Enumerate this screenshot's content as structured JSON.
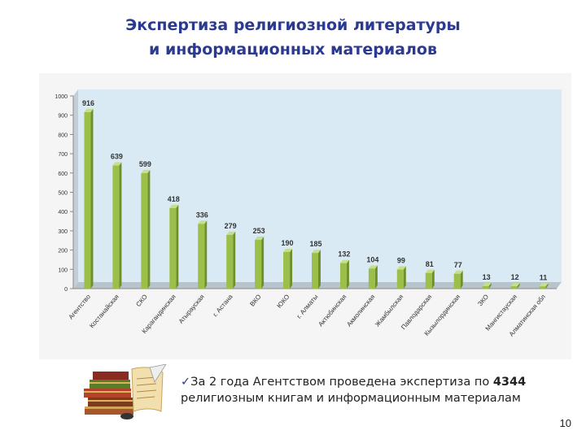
{
  "title": {
    "line1": "Экспертиза религиозной литературы",
    "line2": "и информационных материалов"
  },
  "note": {
    "check": "✓",
    "before": "За 2 года Агентством проведена экспертиза по ",
    "total": "4344",
    "after": " религиозным книгам и информационным материалам"
  },
  "page_number": "10",
  "colors": {
    "title": "#2b3a8f",
    "bar": "#9cbf4a",
    "bar_side": "#6f8f2c",
    "bar_top": "#c6df8a",
    "plot_back": "#d9eaf4"
  },
  "chart_data": {
    "type": "bar",
    "title": "",
    "xlabel": "",
    "ylabel": "",
    "ylim": [
      0,
      1000
    ],
    "yticks": [
      0,
      100,
      200,
      300,
      400,
      500,
      600,
      700,
      800,
      900,
      1000
    ],
    "grid": false,
    "legend": "none",
    "categories": [
      "Агентство",
      "Костанайская",
      "СКО",
      "Карагандинская",
      "Атырауская",
      "г. Астана",
      "ВКО",
      "ЮКО",
      "г. Алматы",
      "Актюбинская",
      "Акмолинская",
      "Жамбылская",
      "Павлодарская",
      "Кызылординская",
      "ЗКО",
      "Мангистауская",
      "Алматинская обл"
    ],
    "values": [
      916,
      639,
      599,
      418,
      336,
      279,
      253,
      190,
      185,
      132,
      104,
      99,
      81,
      77,
      13,
      12,
      11
    ]
  }
}
